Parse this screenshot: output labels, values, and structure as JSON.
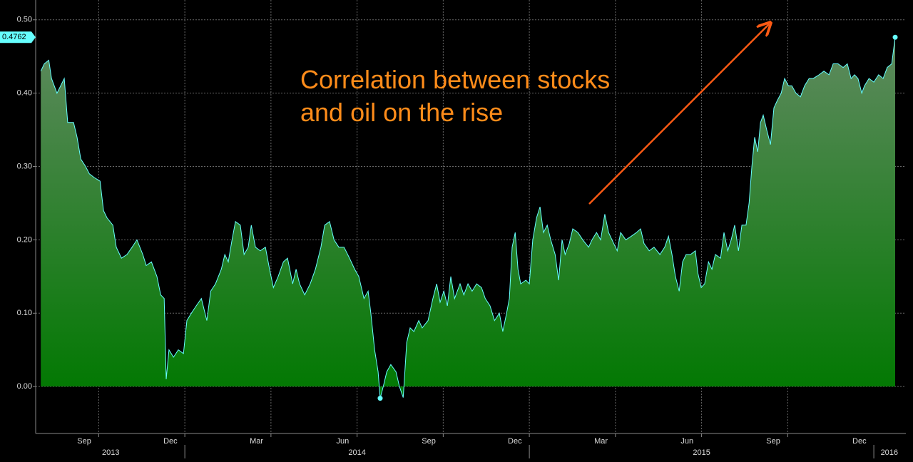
{
  "chart_data": {
    "type": "area",
    "annotation": [
      "Correlation between stocks",
      "and oil on the rise"
    ],
    "x": [
      2013.582,
      2013.592,
      2013.605,
      2013.613,
      2013.629,
      2013.65,
      2013.66,
      2013.677,
      2013.687,
      2013.698,
      2013.712,
      2013.723,
      2013.737,
      2013.754,
      2013.764,
      2013.774,
      2013.791,
      2013.801,
      2013.816,
      2013.832,
      2013.847,
      2013.861,
      2013.878,
      2013.888,
      2013.903,
      2013.919,
      2013.93,
      2013.94,
      2013.946,
      2013.954,
      2013.967,
      2013.981,
      2013.996,
      2014.006,
      2014.019,
      2014.033,
      2014.048,
      2014.064,
      2014.075,
      2014.089,
      2014.106,
      2014.116,
      2014.126,
      2014.137,
      2014.147,
      2014.161,
      2014.172,
      2014.184,
      2014.193,
      2014.205,
      2014.219,
      2014.234,
      2014.246,
      2014.257,
      2014.271,
      2014.286,
      2014.298,
      2014.313,
      2014.323,
      2014.333,
      2014.348,
      2014.364,
      2014.379,
      2014.395,
      2014.406,
      2014.42,
      2014.433,
      2014.447,
      2014.462,
      2014.478,
      2014.493,
      2014.505,
      2014.52,
      2014.532,
      2014.54,
      2014.551,
      2014.561,
      2014.567,
      2014.576,
      2014.586,
      2014.598,
      2014.613,
      2014.623,
      2014.634,
      2014.644,
      2014.654,
      2014.665,
      2014.679,
      2014.689,
      2014.706,
      2014.72,
      2014.731,
      2014.741,
      2014.752,
      2014.762,
      2014.772,
      2014.783,
      2014.799,
      2014.81,
      2014.822,
      2014.834,
      2014.847,
      2014.861,
      2014.872,
      2014.886,
      2014.899,
      2014.913,
      2014.923,
      2014.934,
      2014.942,
      2014.95,
      2014.959,
      2014.967,
      2014.975,
      2014.99,
      2015.0,
      2015.01,
      2015.021,
      2015.031,
      2015.041,
      2015.052,
      2015.062,
      2015.075,
      2015.085,
      2015.095,
      2015.104,
      2015.116,
      2015.126,
      2015.141,
      2015.155,
      2015.172,
      2015.182,
      2015.195,
      2015.207,
      2015.219,
      2015.23,
      2015.24,
      2015.255,
      2015.265,
      2015.28,
      2015.296,
      2015.311,
      2015.323,
      2015.333,
      2015.348,
      2015.362,
      2015.379,
      2015.393,
      2015.404,
      2015.414,
      2015.424,
      2015.435,
      2015.445,
      2015.455,
      2015.468,
      2015.482,
      2015.489,
      2015.499,
      2015.509,
      2015.52,
      2015.53,
      2015.54,
      2015.555,
      2015.565,
      2015.576,
      2015.586,
      2015.596,
      2015.607,
      2015.617,
      2015.629,
      2015.638,
      2015.646,
      2015.654,
      2015.663,
      2015.671,
      2015.679,
      2015.689,
      2015.7,
      2015.71,
      2015.72,
      2015.731,
      2015.741,
      2015.752,
      2015.762,
      2015.774,
      2015.787,
      2015.799,
      2015.812,
      2015.824,
      2015.841,
      2015.855,
      2015.87,
      2015.882,
      2015.896,
      2015.911,
      2015.923,
      2015.934,
      2015.944,
      2015.954,
      2015.965,
      2015.973,
      2015.986,
      2016.0,
      2016.014,
      2016.027,
      2016.039,
      2016.052,
      2016.062
    ],
    "values": [
      0.43,
      0.44,
      0.445,
      0.42,
      0.4,
      0.42,
      0.36,
      0.36,
      0.34,
      0.31,
      0.3,
      0.29,
      0.285,
      0.28,
      0.24,
      0.23,
      0.22,
      0.19,
      0.175,
      0.18,
      0.19,
      0.2,
      0.18,
      0.165,
      0.17,
      0.15,
      0.125,
      0.12,
      0.01,
      0.05,
      0.04,
      0.05,
      0.045,
      0.09,
      0.1,
      0.11,
      0.12,
      0.09,
      0.13,
      0.14,
      0.16,
      0.18,
      0.17,
      0.2,
      0.225,
      0.22,
      0.18,
      0.19,
      0.22,
      0.19,
      0.185,
      0.19,
      0.16,
      0.135,
      0.15,
      0.17,
      0.175,
      0.14,
      0.16,
      0.14,
      0.125,
      0.14,
      0.16,
      0.19,
      0.22,
      0.225,
      0.2,
      0.19,
      0.19,
      0.175,
      0.16,
      0.15,
      0.12,
      0.13,
      0.1,
      0.05,
      0.02,
      -0.016,
      0.0,
      0.02,
      0.03,
      0.02,
      0.0,
      -0.015,
      0.06,
      0.08,
      0.075,
      0.09,
      0.08,
      0.09,
      0.12,
      0.14,
      0.115,
      0.13,
      0.11,
      0.15,
      0.12,
      0.14,
      0.125,
      0.14,
      0.13,
      0.14,
      0.135,
      0.12,
      0.11,
      0.09,
      0.1,
      0.075,
      0.1,
      0.12,
      0.19,
      0.21,
      0.16,
      0.14,
      0.145,
      0.14,
      0.2,
      0.23,
      0.245,
      0.21,
      0.22,
      0.2,
      0.18,
      0.145,
      0.2,
      0.18,
      0.195,
      0.215,
      0.21,
      0.2,
      0.19,
      0.2,
      0.21,
      0.2,
      0.235,
      0.21,
      0.2,
      0.185,
      0.21,
      0.2,
      0.205,
      0.21,
      0.215,
      0.195,
      0.185,
      0.19,
      0.18,
      0.19,
      0.205,
      0.18,
      0.15,
      0.13,
      0.17,
      0.18,
      0.18,
      0.185,
      0.155,
      0.135,
      0.14,
      0.17,
      0.16,
      0.18,
      0.175,
      0.21,
      0.185,
      0.2,
      0.22,
      0.185,
      0.22,
      0.22,
      0.25,
      0.3,
      0.34,
      0.32,
      0.36,
      0.37,
      0.35,
      0.33,
      0.38,
      0.39,
      0.4,
      0.42,
      0.41,
      0.41,
      0.4,
      0.395,
      0.41,
      0.42,
      0.42,
      0.425,
      0.43,
      0.425,
      0.44,
      0.44,
      0.435,
      0.44,
      0.42,
      0.425,
      0.42,
      0.4,
      0.41,
      0.42,
      0.415,
      0.425,
      0.42,
      0.435,
      0.44,
      0.4762
    ],
    "color": "#66ffff",
    "fill_colors": [
      "#5f8a5f",
      "#007800"
    ],
    "xlim": [
      2013.567,
      2016.093
    ],
    "ylim": [
      -0.064,
      0.527
    ],
    "yticks": [
      {
        "value": 0,
        "label": "0.00"
      },
      {
        "value": 0.1,
        "label": "0.10"
      },
      {
        "value": 0.2,
        "label": "0.20"
      },
      {
        "value": 0.3,
        "label": "0.30"
      },
      {
        "value": 0.4,
        "label": "0.40"
      },
      {
        "value": 0.5,
        "label": "0.50"
      }
    ],
    "xticks": [
      {
        "value": 2013.708,
        "label": "Sep"
      },
      {
        "value": 2013.958,
        "label": "Dec"
      },
      {
        "value": 2014.208,
        "label": "Mar"
      },
      {
        "value": 2014.458,
        "label": "Jun"
      },
      {
        "value": 2014.708,
        "label": "Sep"
      },
      {
        "value": 2014.958,
        "label": "Dec"
      },
      {
        "value": 2015.208,
        "label": "Mar"
      },
      {
        "value": 2015.458,
        "label": "Jun"
      },
      {
        "value": 2015.708,
        "label": "Sep"
      },
      {
        "value": 2015.958,
        "label": "Dec"
      }
    ],
    "xgrid": [
      2013.75,
      2014,
      2014.25,
      2014.5,
      2014.75,
      2015,
      2015.25,
      2015.5,
      2015.75
    ],
    "year_labels": [
      {
        "value": 2013.785,
        "label": "2013"
      },
      {
        "value": 2014.5,
        "label": "2014"
      },
      {
        "value": 2015.5,
        "label": "2015"
      },
      {
        "value": 2016.045,
        "label": "2016"
      }
    ],
    "year_bounds": [
      2014,
      2015,
      2016
    ],
    "grid": true
  }
}
